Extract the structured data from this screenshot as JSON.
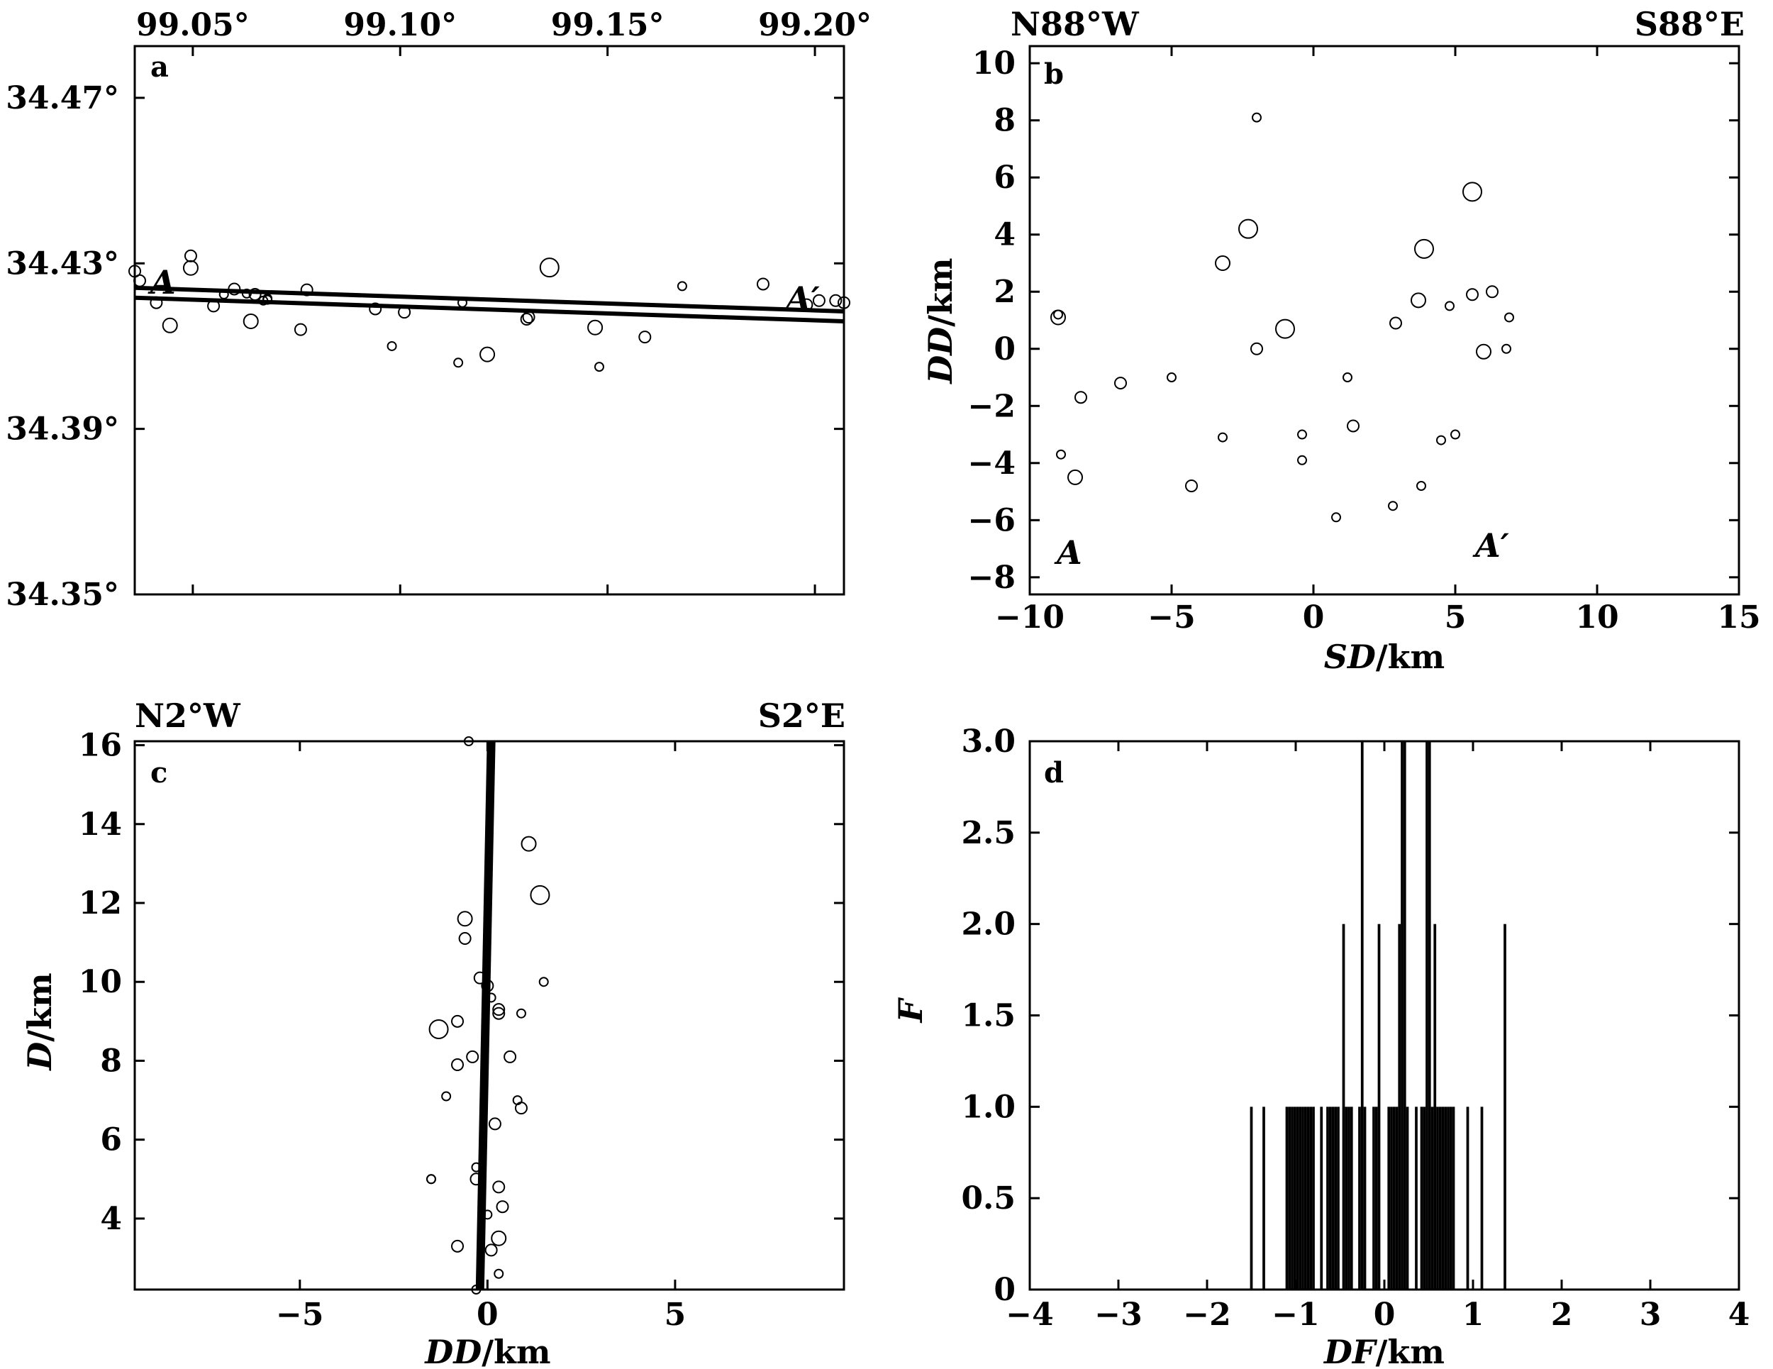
{
  "chart_data": [
    {
      "panel": "a",
      "type": "scatter",
      "letter": "a",
      "xlim": [
        99.036,
        99.207
      ],
      "ylim": [
        34.35,
        34.4825
      ],
      "x_ticks": [
        99.05,
        99.1,
        99.15,
        99.2
      ],
      "x_tick_labels": [
        "99.05°",
        "99.10°",
        "99.15°",
        "99.20°"
      ],
      "y_ticks": [
        34.47,
        34.43,
        34.39,
        34.35
      ],
      "y_tick_labels": [
        "34.47°",
        "34.43°",
        "34.39°",
        "34.35°"
      ],
      "x_axis_position": "top",
      "profile_label_start": "A",
      "profile_label_end": "A′",
      "profile_line": {
        "x": [
          99.036,
          99.207
        ],
        "y": [
          34.4229,
          34.4172
        ],
        "double": true
      },
      "points": [
        {
          "x": 99.036,
          "y": 34.4281,
          "m": 1
        },
        {
          "x": 99.0372,
          "y": 34.4258,
          "m": 1
        },
        {
          "x": 99.0412,
          "y": 34.4205,
          "m": 1
        },
        {
          "x": 99.0495,
          "y": 34.4318,
          "m": 1
        },
        {
          "x": 99.0495,
          "y": 34.4289,
          "m": 2
        },
        {
          "x": 99.0445,
          "y": 34.415,
          "m": 2
        },
        {
          "x": 99.055,
          "y": 34.4197,
          "m": 1
        },
        {
          "x": 99.0575,
          "y": 34.4225,
          "m": 0
        },
        {
          "x": 99.06,
          "y": 34.4238,
          "m": 1
        },
        {
          "x": 99.063,
          "y": 34.4227,
          "m": 0
        },
        {
          "x": 99.065,
          "y": 34.4225,
          "m": 1
        },
        {
          "x": 99.067,
          "y": 34.421,
          "m": 0
        },
        {
          "x": 99.068,
          "y": 34.4212,
          "m": 0
        },
        {
          "x": 99.068,
          "y": 34.4215,
          "m": 0
        },
        {
          "x": 99.064,
          "y": 34.416,
          "m": 2
        },
        {
          "x": 99.076,
          "y": 34.414,
          "m": 1
        },
        {
          "x": 99.0775,
          "y": 34.4236,
          "m": 1
        },
        {
          "x": 99.094,
          "y": 34.419,
          "m": 1
        },
        {
          "x": 99.101,
          "y": 34.4182,
          "m": 1
        },
        {
          "x": 99.098,
          "y": 34.41,
          "m": 0
        },
        {
          "x": 99.114,
          "y": 34.406,
          "m": 0
        },
        {
          "x": 99.115,
          "y": 34.4205,
          "m": 0
        },
        {
          "x": 99.121,
          "y": 34.408,
          "m": 2
        },
        {
          "x": 99.1305,
          "y": 34.4165,
          "m": 1
        },
        {
          "x": 99.131,
          "y": 34.417,
          "m": 1
        },
        {
          "x": 99.136,
          "y": 34.429,
          "m": 3
        },
        {
          "x": 99.147,
          "y": 34.4145,
          "m": 2
        },
        {
          "x": 99.148,
          "y": 34.405,
          "m": 0
        },
        {
          "x": 99.159,
          "y": 34.4122,
          "m": 1
        },
        {
          "x": 99.168,
          "y": 34.4245,
          "m": 0
        },
        {
          "x": 99.1875,
          "y": 34.425,
          "m": 1
        },
        {
          "x": 99.198,
          "y": 34.42,
          "m": 1
        },
        {
          "x": 99.201,
          "y": 34.421,
          "m": 1
        },
        {
          "x": 99.205,
          "y": 34.421,
          "m": 1
        },
        {
          "x": 99.207,
          "y": 34.4205,
          "m": 1
        }
      ]
    },
    {
      "panel": "b",
      "type": "scatter",
      "letter": "b",
      "title_left": "N88°W",
      "title_right": "S88°E",
      "xlabel_italic": "SD",
      "xlabel_unit": "/km",
      "ylabel_italic": "DD",
      "ylabel_unit": "/km",
      "xlim": [
        -10,
        15
      ],
      "ylim": [
        10.6,
        -8.6
      ],
      "x_ticks": [
        -10,
        -5,
        0,
        5,
        10,
        15
      ],
      "x_tick_labels": [
        "−10",
        "−5",
        "0",
        "5",
        "10",
        "15"
      ],
      "y_ticks": [
        -8,
        -6,
        -4,
        -2,
        0,
        2,
        4,
        6,
        8,
        10
      ],
      "y_tick_labels": [
        "−8",
        "−6",
        "−4",
        "−2",
        "0",
        "2",
        "4",
        "6",
        "8",
        "10"
      ],
      "profile_label_start": "A",
      "profile_label_end": "A′",
      "fault_rect": {
        "x": [
          -9.0,
          6.8
        ],
        "y": [
          -5.9,
          8.1
        ]
      },
      "points": [
        {
          "x": 0.8,
          "y": -5.9,
          "m": 0
        },
        {
          "x": 2.8,
          "y": -5.5,
          "m": 0
        },
        {
          "x": -8.4,
          "y": -4.5,
          "m": 2
        },
        {
          "x": -4.3,
          "y": -4.8,
          "m": 1
        },
        {
          "x": 3.8,
          "y": -4.8,
          "m": 0
        },
        {
          "x": -8.9,
          "y": -3.7,
          "m": 0
        },
        {
          "x": -0.4,
          "y": -3.9,
          "m": 0
        },
        {
          "x": -3.2,
          "y": -3.1,
          "m": 0
        },
        {
          "x": -0.4,
          "y": -3.0,
          "m": 0
        },
        {
          "x": 4.5,
          "y": -3.2,
          "m": 0
        },
        {
          "x": 5.0,
          "y": -3.0,
          "m": 0
        },
        {
          "x": 1.4,
          "y": -2.7,
          "m": 1
        },
        {
          "x": -8.2,
          "y": -1.7,
          "m": 1
        },
        {
          "x": -6.8,
          "y": -1.2,
          "m": 1
        },
        {
          "x": -5.0,
          "y": -1.0,
          "m": 0
        },
        {
          "x": 1.2,
          "y": -1.0,
          "m": 0
        },
        {
          "x": -2.0,
          "y": 0.0,
          "m": 1
        },
        {
          "x": 6.0,
          "y": -0.1,
          "m": 2
        },
        {
          "x": 6.8,
          "y": 0.0,
          "m": 0
        },
        {
          "x": -1.0,
          "y": 0.7,
          "m": 3
        },
        {
          "x": 2.9,
          "y": 0.9,
          "m": 1
        },
        {
          "x": -9.0,
          "y": 1.1,
          "m": 2
        },
        {
          "x": -9.0,
          "y": 1.2,
          "m": 0
        },
        {
          "x": 6.9,
          "y": 1.1,
          "m": 0
        },
        {
          "x": 3.7,
          "y": 1.7,
          "m": 2
        },
        {
          "x": 4.8,
          "y": 1.5,
          "m": 0
        },
        {
          "x": 5.6,
          "y": 1.9,
          "m": 1
        },
        {
          "x": 6.3,
          "y": 2.0,
          "m": 1
        },
        {
          "x": -3.2,
          "y": 3.0,
          "m": 2
        },
        {
          "x": 3.9,
          "y": 3.5,
          "m": 3
        },
        {
          "x": -2.3,
          "y": 4.2,
          "m": 3
        },
        {
          "x": 5.6,
          "y": 5.5,
          "m": 3
        },
        {
          "x": -2.0,
          "y": 8.1,
          "m": 0
        }
      ]
    },
    {
      "panel": "c",
      "type": "scatter",
      "letter": "c",
      "title_left": "N2°W",
      "title_right": "S2°E",
      "xlabel_italic": "DD",
      "xlabel_unit": "/km",
      "ylabel_italic": "D",
      "ylabel_unit": "/km",
      "xlim": [
        -9.4,
        9.5
      ],
      "ylim": [
        16.1,
        2.2
      ],
      "x_ticks": [
        -5,
        0,
        5
      ],
      "x_tick_labels": [
        "−5",
        "0",
        "5"
      ],
      "y_ticks": [
        4,
        6,
        8,
        10,
        12,
        14,
        16
      ],
      "y_tick_labels": [
        "4",
        "6",
        "8",
        "10",
        "12",
        "14",
        "16"
      ],
      "fault_line": {
        "x": [
          -0.2,
          0.1
        ],
        "y": [
          2.2,
          16.1
        ]
      },
      "points": [
        {
          "x": -0.3,
          "y": 2.2,
          "m": 0
        },
        {
          "x": 0.3,
          "y": 2.6,
          "m": 0
        },
        {
          "x": -0.8,
          "y": 3.3,
          "m": 1
        },
        {
          "x": 0.1,
          "y": 3.2,
          "m": 1
        },
        {
          "x": 0.3,
          "y": 3.5,
          "m": 2
        },
        {
          "x": 0.0,
          "y": 4.1,
          "m": 0
        },
        {
          "x": 0.4,
          "y": 4.3,
          "m": 1
        },
        {
          "x": 0.3,
          "y": 4.8,
          "m": 1
        },
        {
          "x": -1.5,
          "y": 5.0,
          "m": 0
        },
        {
          "x": -1.5,
          "y": 5.0,
          "m": 0
        },
        {
          "x": -0.3,
          "y": 5.0,
          "m": 1
        },
        {
          "x": -0.3,
          "y": 5.3,
          "m": 0
        },
        {
          "x": 0.2,
          "y": 6.4,
          "m": 1
        },
        {
          "x": 0.9,
          "y": 6.8,
          "m": 1
        },
        {
          "x": 0.8,
          "y": 7.0,
          "m": 0
        },
        {
          "x": -1.1,
          "y": 7.1,
          "m": 0
        },
        {
          "x": -0.8,
          "y": 7.9,
          "m": 1
        },
        {
          "x": -0.4,
          "y": 8.1,
          "m": 1
        },
        {
          "x": 0.6,
          "y": 8.1,
          "m": 1
        },
        {
          "x": -1.3,
          "y": 8.8,
          "m": 3
        },
        {
          "x": -0.8,
          "y": 9.0,
          "m": 1
        },
        {
          "x": 0.3,
          "y": 9.2,
          "m": 1
        },
        {
          "x": 0.3,
          "y": 9.3,
          "m": 1
        },
        {
          "x": 0.9,
          "y": 9.2,
          "m": 0
        },
        {
          "x": 0.1,
          "y": 9.6,
          "m": 0
        },
        {
          "x": 0.0,
          "y": 9.9,
          "m": 1
        },
        {
          "x": -0.2,
          "y": 10.1,
          "m": 1
        },
        {
          "x": 1.5,
          "y": 10.0,
          "m": 0
        },
        {
          "x": -0.6,
          "y": 11.1,
          "m": 1
        },
        {
          "x": -0.6,
          "y": 11.6,
          "m": 2
        },
        {
          "x": 1.4,
          "y": 12.2,
          "m": 3
        },
        {
          "x": 1.1,
          "y": 13.5,
          "m": 2
        },
        {
          "x": -0.5,
          "y": 16.1,
          "m": 0
        }
      ]
    },
    {
      "panel": "d",
      "type": "bar",
      "letter": "d",
      "xlabel_italic": "DF",
      "xlabel_unit": "/km",
      "ylabel_italic": "F",
      "xlim": [
        -4,
        4
      ],
      "ylim": [
        0,
        3
      ],
      "x_ticks": [
        -4,
        -3,
        -2,
        -1,
        0,
        1,
        2,
        3,
        4
      ],
      "x_tick_labels": [
        "−4",
        "−3",
        "−2",
        "−1",
        "0",
        "1",
        "2",
        "3",
        "4"
      ],
      "y_ticks": [
        0,
        0.5,
        1.0,
        1.5,
        2.0,
        2.5,
        3.0
      ],
      "y_tick_labels": [
        "0",
        "0.5",
        "1.0",
        "1.5",
        "2.0",
        "2.5",
        "3.0"
      ],
      "bar_width": 0.03,
      "bars": [
        {
          "x": -1.5,
          "value": 1
        },
        {
          "x": -1.36,
          "value": 1
        },
        {
          "x": -1.1,
          "value": 1
        },
        {
          "x": -1.07,
          "value": 1
        },
        {
          "x": -1.04,
          "value": 1
        },
        {
          "x": -1.01,
          "value": 1
        },
        {
          "x": -0.98,
          "value": 1
        },
        {
          "x": -0.95,
          "value": 1
        },
        {
          "x": -0.92,
          "value": 1
        },
        {
          "x": -0.89,
          "value": 1
        },
        {
          "x": -0.86,
          "value": 1
        },
        {
          "x": -0.83,
          "value": 1
        },
        {
          "x": -0.8,
          "value": 1
        },
        {
          "x": -0.71,
          "value": 1
        },
        {
          "x": -0.64,
          "value": 1
        },
        {
          "x": -0.61,
          "value": 1
        },
        {
          "x": -0.58,
          "value": 1
        },
        {
          "x": -0.55,
          "value": 1
        },
        {
          "x": -0.52,
          "value": 1
        },
        {
          "x": -0.46,
          "value": 2
        },
        {
          "x": -0.43,
          "value": 1
        },
        {
          "x": -0.4,
          "value": 1
        },
        {
          "x": -0.37,
          "value": 1
        },
        {
          "x": -0.28,
          "value": 1
        },
        {
          "x": -0.25,
          "value": 3
        },
        {
          "x": -0.22,
          "value": 1
        },
        {
          "x": -0.12,
          "value": 1
        },
        {
          "x": -0.09,
          "value": 1
        },
        {
          "x": -0.06,
          "value": 2
        },
        {
          "x": 0.05,
          "value": 1
        },
        {
          "x": 0.08,
          "value": 1
        },
        {
          "x": 0.11,
          "value": 1
        },
        {
          "x": 0.14,
          "value": 1
        },
        {
          "x": 0.17,
          "value": 2
        },
        {
          "x": 0.2,
          "value": 3
        },
        {
          "x": 0.23,
          "value": 3
        },
        {
          "x": 0.26,
          "value": 1
        },
        {
          "x": 0.36,
          "value": 1
        },
        {
          "x": 0.42,
          "value": 1
        },
        {
          "x": 0.45,
          "value": 1
        },
        {
          "x": 0.48,
          "value": 3
        },
        {
          "x": 0.51,
          "value": 3
        },
        {
          "x": 0.54,
          "value": 1
        },
        {
          "x": 0.57,
          "value": 2
        },
        {
          "x": 0.6,
          "value": 1
        },
        {
          "x": 0.63,
          "value": 1
        },
        {
          "x": 0.66,
          "value": 1
        },
        {
          "x": 0.69,
          "value": 1
        },
        {
          "x": 0.72,
          "value": 1
        },
        {
          "x": 0.75,
          "value": 1
        },
        {
          "x": 0.78,
          "value": 1
        },
        {
          "x": 0.94,
          "value": 1
        },
        {
          "x": 1.1,
          "value": 1
        },
        {
          "x": 1.36,
          "value": 2
        }
      ]
    }
  ]
}
